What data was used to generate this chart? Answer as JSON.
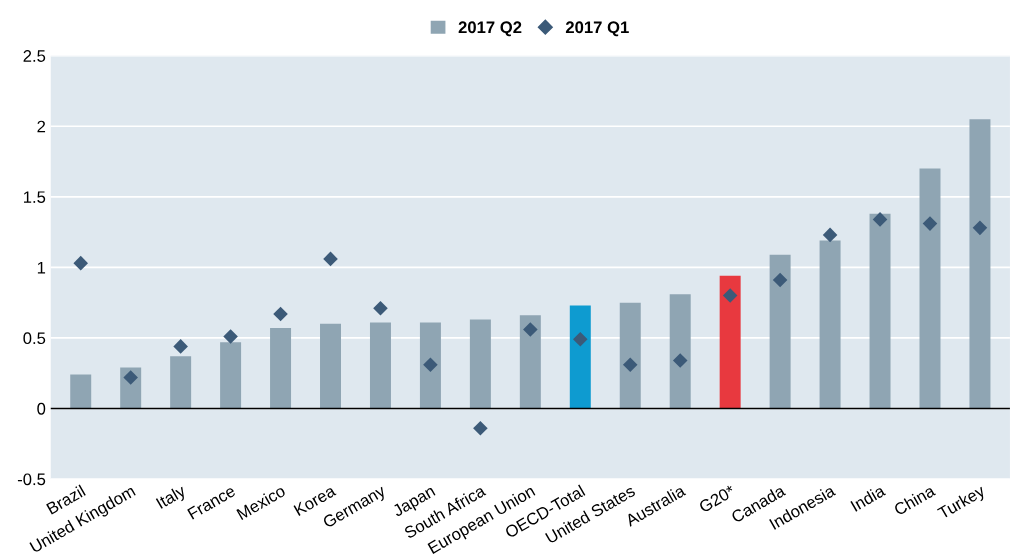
{
  "chart_data": {
    "type": "bar",
    "categories": [
      "Brazil",
      "United Kingdom",
      "Italy",
      "France",
      "Mexico",
      "Korea",
      "Germany",
      "Japan",
      "South Africa",
      "European Union",
      "OECD-Total",
      "United States",
      "Australia",
      "G20*",
      "Canada",
      "Indonesia",
      "India",
      "China",
      "Turkey"
    ],
    "series": [
      {
        "name": "2017 Q2",
        "color": "#8fa5b3",
        "colors": [
          "#8fa5b3",
          "#8fa5b3",
          "#8fa5b3",
          "#8fa5b3",
          "#8fa5b3",
          "#8fa5b3",
          "#8fa5b3",
          "#8fa5b3",
          "#8fa5b3",
          "#8fa5b3",
          "#0e9bd0",
          "#8fa5b3",
          "#8fa5b3",
          "#e8393f",
          "#8fa5b3",
          "#8fa5b3",
          "#8fa5b3",
          "#8fa5b3",
          "#8fa5b3"
        ],
        "values": [
          0.24,
          0.29,
          0.37,
          0.47,
          0.57,
          0.6,
          0.61,
          0.61,
          0.63,
          0.66,
          0.73,
          0.75,
          0.81,
          0.94,
          1.09,
          1.19,
          1.38,
          1.7,
          2.05
        ]
      },
      {
        "name": "2017 Q1",
        "type": "scatter",
        "marker": "diamond",
        "color": "#3c5a78",
        "values": [
          1.03,
          0.22,
          0.44,
          0.51,
          0.67,
          1.06,
          0.71,
          0.31,
          -0.14,
          0.56,
          0.49,
          0.31,
          0.34,
          0.8,
          0.91,
          1.23,
          1.34,
          1.31,
          1.28
        ]
      }
    ],
    "ylim": [
      -0.5,
      2.5
    ],
    "yticks": [
      -0.5,
      0,
      0.5,
      1,
      1.5,
      2,
      2.5
    ],
    "grid": "y",
    "legend": "top",
    "ref_lines": [
      {
        "axis": "y",
        "value": 0,
        "color": "#000000"
      }
    ]
  }
}
